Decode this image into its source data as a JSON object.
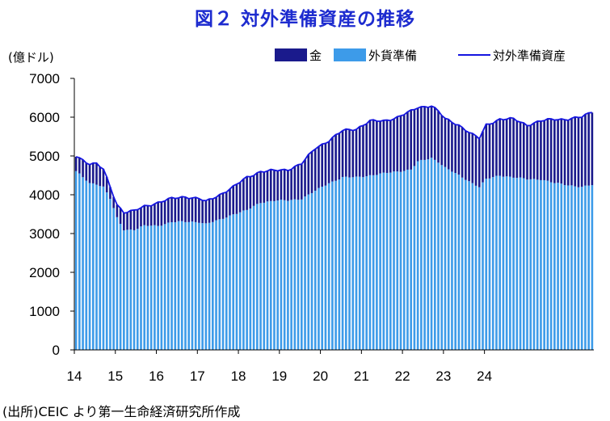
{
  "chart_data": {
    "type": "bar",
    "title": "図２ 対外準備資産の推移",
    "ylabel": "(億ドル)",
    "xlabel": "",
    "ylim": [
      0,
      7000
    ],
    "yticks": [
      0,
      1000,
      2000,
      3000,
      4000,
      5000,
      6000,
      7000
    ],
    "xticks": [
      "14",
      "15",
      "16",
      "17",
      "18",
      "19",
      "20",
      "21",
      "22",
      "23",
      "24"
    ],
    "grid": false,
    "legend_position": "top-right",
    "colors": {
      "gold": "#1a1a8c",
      "fx": "#3d9be9",
      "total": "#1515e0"
    },
    "legend": {
      "gold": "金",
      "fx": "外貨準備",
      "total": "対外準備資産"
    },
    "monthly_fx_anchors": [
      {
        "t": 0,
        "v": 4600
      },
      {
        "t": 4,
        "v": 4300
      },
      {
        "t": 6,
        "v": 4280
      },
      {
        "t": 8,
        "v": 4200
      },
      {
        "t": 10,
        "v": 3900
      },
      {
        "t": 12,
        "v": 3400
      },
      {
        "t": 14,
        "v": 3100
      },
      {
        "t": 17,
        "v": 3100
      },
      {
        "t": 20,
        "v": 3200
      },
      {
        "t": 24,
        "v": 3200
      },
      {
        "t": 28,
        "v": 3300
      },
      {
        "t": 32,
        "v": 3300
      },
      {
        "t": 36,
        "v": 3300
      },
      {
        "t": 38,
        "v": 3250
      },
      {
        "t": 42,
        "v": 3350
      },
      {
        "t": 46,
        "v": 3500
      },
      {
        "t": 50,
        "v": 3600
      },
      {
        "t": 54,
        "v": 3800
      },
      {
        "t": 58,
        "v": 3850
      },
      {
        "t": 62,
        "v": 3850
      },
      {
        "t": 66,
        "v": 3900
      },
      {
        "t": 70,
        "v": 4100
      },
      {
        "t": 74,
        "v": 4300
      },
      {
        "t": 78,
        "v": 4450
      },
      {
        "t": 82,
        "v": 4450
      },
      {
        "t": 86,
        "v": 4500
      },
      {
        "t": 90,
        "v": 4550
      },
      {
        "t": 94,
        "v": 4600
      },
      {
        "t": 98,
        "v": 4650
      },
      {
        "t": 100,
        "v": 4850
      },
      {
        "t": 104,
        "v": 4950
      },
      {
        "t": 106,
        "v": 4850
      },
      {
        "t": 108,
        "v": 4700
      },
      {
        "t": 112,
        "v": 4500
      },
      {
        "t": 116,
        "v": 4300
      },
      {
        "t": 118,
        "v": 4200
      },
      {
        "t": 120,
        "v": 4400
      },
      {
        "t": 124,
        "v": 4500
      },
      {
        "t": 128,
        "v": 4450
      },
      {
        "t": 132,
        "v": 4400
      },
      {
        "t": 136,
        "v": 4400
      },
      {
        "t": 140,
        "v": 4300
      },
      {
        "t": 144,
        "v": 4250
      },
      {
        "t": 148,
        "v": 4200
      },
      {
        "t": 151,
        "v": 4250
      }
    ],
    "monthly_total_anchors": [
      {
        "t": 0,
        "v": 5000
      },
      {
        "t": 4,
        "v": 4800
      },
      {
        "t": 6,
        "v": 4800
      },
      {
        "t": 8,
        "v": 4650
      },
      {
        "t": 10,
        "v": 4200
      },
      {
        "t": 12,
        "v": 3750
      },
      {
        "t": 14,
        "v": 3550
      },
      {
        "t": 17,
        "v": 3580
      },
      {
        "t": 20,
        "v": 3700
      },
      {
        "t": 24,
        "v": 3800
      },
      {
        "t": 28,
        "v": 3900
      },
      {
        "t": 32,
        "v": 3950
      },
      {
        "t": 36,
        "v": 3900
      },
      {
        "t": 38,
        "v": 3820
      },
      {
        "t": 42,
        "v": 4000
      },
      {
        "t": 46,
        "v": 4200
      },
      {
        "t": 50,
        "v": 4450
      },
      {
        "t": 54,
        "v": 4600
      },
      {
        "t": 58,
        "v": 4620
      },
      {
        "t": 62,
        "v": 4650
      },
      {
        "t": 66,
        "v": 4800
      },
      {
        "t": 70,
        "v": 5200
      },
      {
        "t": 74,
        "v": 5400
      },
      {
        "t": 78,
        "v": 5650
      },
      {
        "t": 82,
        "v": 5700
      },
      {
        "t": 86,
        "v": 5900
      },
      {
        "t": 90,
        "v": 5900
      },
      {
        "t": 94,
        "v": 6000
      },
      {
        "t": 98,
        "v": 6150
      },
      {
        "t": 100,
        "v": 6250
      },
      {
        "t": 104,
        "v": 6300
      },
      {
        "t": 106,
        "v": 6150
      },
      {
        "t": 108,
        "v": 5950
      },
      {
        "t": 112,
        "v": 5800
      },
      {
        "t": 116,
        "v": 5550
      },
      {
        "t": 118,
        "v": 5450
      },
      {
        "t": 120,
        "v": 5800
      },
      {
        "t": 124,
        "v": 5950
      },
      {
        "t": 128,
        "v": 5950
      },
      {
        "t": 132,
        "v": 5800
      },
      {
        "t": 136,
        "v": 5900
      },
      {
        "t": 140,
        "v": 5950
      },
      {
        "t": 144,
        "v": 5950
      },
      {
        "t": 148,
        "v": 6000
      },
      {
        "t": 151,
        "v": 6150
      }
    ],
    "months": 152
  },
  "source_note": "(出所)CEIC より第一生命経済研究所作成"
}
